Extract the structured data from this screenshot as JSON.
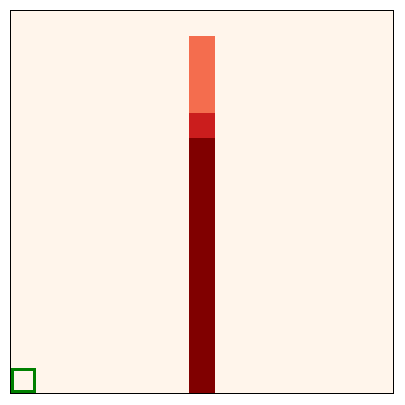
{
  "game": {
    "name": "grid-world",
    "grid": {
      "cols": 15,
      "rows": 15
    },
    "background_color": "#fff5eb",
    "frame_color": "#000000",
    "heat_cells": [
      {
        "col": 7,
        "row": 1,
        "intensity": 0.45,
        "color": "#f46d4e"
      },
      {
        "col": 7,
        "row": 2,
        "intensity": 0.45,
        "color": "#f46d4e"
      },
      {
        "col": 7,
        "row": 3,
        "intensity": 0.45,
        "color": "#f46d4e"
      },
      {
        "col": 7,
        "row": 4,
        "intensity": 0.75,
        "color": "#cb1d1d"
      },
      {
        "col": 7,
        "row": 5,
        "intensity": 1.0,
        "color": "#800000"
      },
      {
        "col": 7,
        "row": 6,
        "intensity": 1.0,
        "color": "#800000"
      },
      {
        "col": 7,
        "row": 7,
        "intensity": 1.0,
        "color": "#800000"
      },
      {
        "col": 7,
        "row": 8,
        "intensity": 1.0,
        "color": "#800000"
      },
      {
        "col": 7,
        "row": 9,
        "intensity": 1.0,
        "color": "#800000"
      },
      {
        "col": 7,
        "row": 10,
        "intensity": 1.0,
        "color": "#800000"
      },
      {
        "col": 7,
        "row": 11,
        "intensity": 1.0,
        "color": "#800000"
      },
      {
        "col": 7,
        "row": 12,
        "intensity": 1.0,
        "color": "#800000"
      },
      {
        "col": 7,
        "row": 13,
        "intensity": 1.0,
        "color": "#800000"
      },
      {
        "col": 7,
        "row": 14,
        "intensity": 1.0,
        "color": "#800000"
      }
    ],
    "agent": {
      "col": 0,
      "row": 14,
      "color": "#008000"
    }
  }
}
